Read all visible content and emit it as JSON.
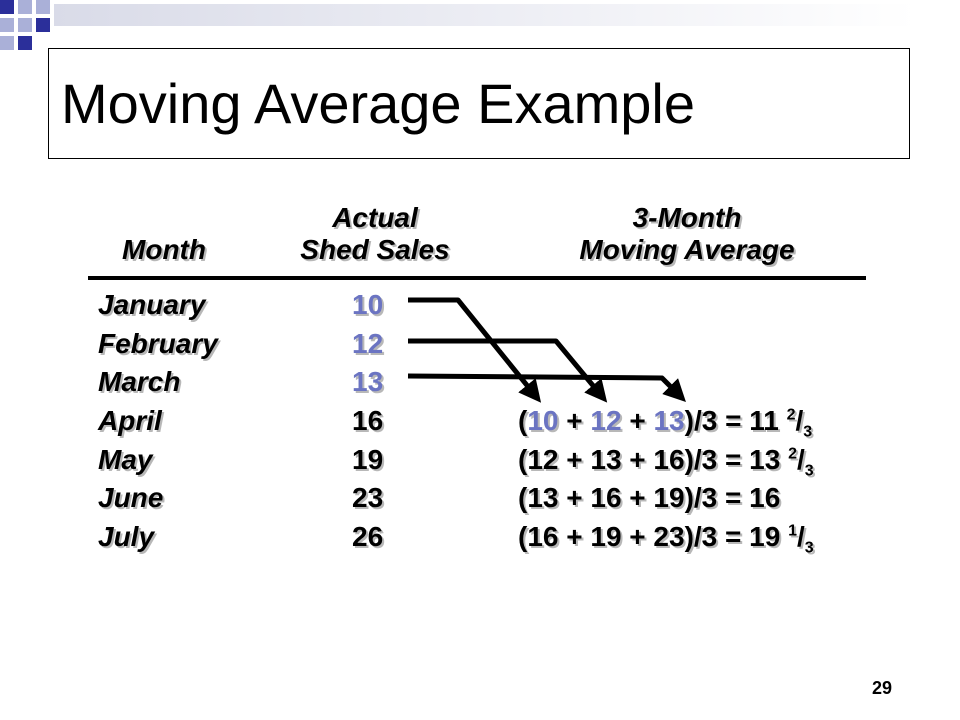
{
  "title": "Moving Average Example",
  "headers": {
    "month": "Month",
    "sales_line1": "Actual",
    "sales_line2": "Shed Sales",
    "avg_line1": "3-Month",
    "avg_line2": "Moving Average"
  },
  "rows": [
    {
      "month": "January",
      "sales": "10"
    },
    {
      "month": "February",
      "sales": "12"
    },
    {
      "month": "March",
      "sales": "13"
    },
    {
      "month": "April",
      "sales": "16"
    },
    {
      "month": "May",
      "sales": "19"
    },
    {
      "month": "June",
      "sales": "23"
    },
    {
      "month": "July",
      "sales": "26"
    }
  ],
  "calcs": [
    {
      "open": "(",
      "a": "10",
      "p1": " + ",
      "b": "12",
      "p2": " + ",
      "c": "13",
      "close": ")/3 = 11 ",
      "num": "2",
      "slash": "/",
      "den": "3"
    },
    {
      "text": "(12 + 13 + 16)/3 = 13 ",
      "num": "2",
      "slash": "/",
      "den": "3"
    },
    {
      "text": "(13 + 16 + 19)/3 = 16"
    },
    {
      "text": "(16 + 19 + 23)/3 = 19 ",
      "num": "1",
      "slash": "/",
      "den": "3"
    }
  ],
  "page_number": "29",
  "colors": {
    "highlight": "#6b74c2",
    "deco_dark": "#2b2f9a",
    "deco_light": "#aab0d8"
  }
}
